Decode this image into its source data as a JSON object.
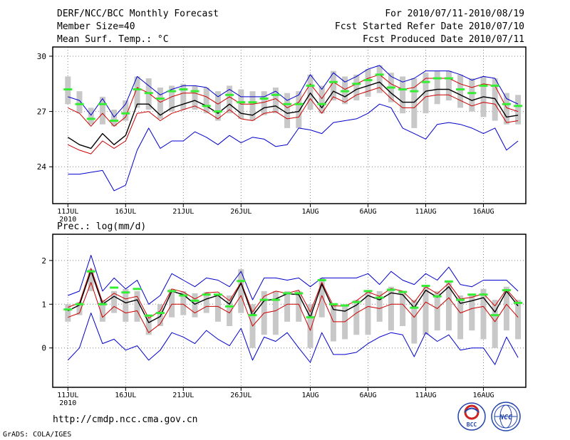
{
  "header": {
    "title": "DERF/NCC/BCC Monthly Forecast",
    "member_size": "Member Size=40",
    "variable": "Mean Surf. Temp.: °C",
    "period": "For 2010/07/11-2010/08/19",
    "fcst_started": "Fcst Started Refer Date 2010/07/10",
    "fcst_produced": "Fcst Produced Date 2010/07/11"
  },
  "footer": {
    "url": "http://cmdp.ncc.cma.gov.cn",
    "grads": "GrADS: COLA/IGES",
    "logo_left_text": "BCC",
    "logo_right_text": "NCC"
  },
  "colors": {
    "max_min": "#0000cc",
    "pct": "#cc0000",
    "mean": "#000000",
    "box": "#c8c8c8",
    "obs": "#33ee33",
    "grid": "#888888"
  },
  "chart_data": [
    {
      "type": "line",
      "title": "Mean Surf. Temp.: °C",
      "ylabel": "",
      "ylim": [
        22,
        30.5
      ],
      "yticks": [
        24,
        27,
        30
      ],
      "year_label": "2010",
      "xticks": [
        {
          "day": 1,
          "label": "11JUL"
        },
        {
          "day": 6,
          "label": "16JUL"
        },
        {
          "day": 11,
          "label": "21JUL"
        },
        {
          "day": 16,
          "label": "26JUL"
        },
        {
          "day": 22,
          "label": "1AUG"
        },
        {
          "day": 27,
          "label": "6AUG"
        },
        {
          "day": 32,
          "label": "11AUG"
        },
        {
          "day": 37,
          "label": "16AUG"
        }
      ],
      "series": [
        {
          "name": "max",
          "values": [
            27.8,
            27.6,
            26.8,
            27.7,
            26.7,
            27.4,
            28.9,
            28.4,
            27.9,
            28.2,
            28.4,
            28.4,
            28.3,
            27.8,
            28.2,
            27.8,
            27.8,
            27.8,
            28.1,
            27.6,
            27.9,
            29.0,
            28.2,
            29.1,
            28.6,
            28.9,
            29.3,
            29.5,
            28.9,
            28.6,
            28.8,
            29.2,
            29.2,
            29.2,
            29.0,
            28.7,
            28.9,
            28.8,
            27.7,
            27.4
          ]
        },
        {
          "name": "p75",
          "values": [
            27.2,
            26.9,
            26.2,
            26.9,
            26.2,
            26.7,
            28.3,
            28.0,
            27.5,
            27.8,
            28.0,
            28.0,
            27.8,
            27.4,
            27.8,
            27.4,
            27.4,
            27.5,
            27.7,
            27.2,
            27.5,
            28.5,
            27.7,
            28.6,
            28.2,
            28.5,
            28.8,
            29.0,
            28.5,
            28.2,
            28.3,
            28.8,
            28.8,
            28.8,
            28.5,
            28.3,
            28.5,
            28.4,
            27.2,
            27.0
          ]
        },
        {
          "name": "mean",
          "values": [
            25.6,
            25.2,
            25.0,
            25.8,
            25.2,
            25.7,
            27.4,
            27.4,
            26.8,
            27.2,
            27.4,
            27.6,
            27.3,
            26.9,
            27.4,
            26.9,
            26.8,
            27.2,
            27.3,
            26.9,
            27.0,
            28.0,
            27.2,
            28.1,
            27.8,
            28.2,
            28.4,
            28.6,
            28.0,
            27.5,
            27.5,
            28.1,
            28.2,
            28.2,
            27.9,
            27.6,
            27.8,
            27.7,
            26.7,
            26.8
          ]
        },
        {
          "name": "p25",
          "values": [
            25.2,
            24.9,
            24.7,
            25.4,
            25.0,
            25.4,
            26.9,
            27.0,
            26.5,
            26.9,
            27.1,
            27.3,
            27.0,
            26.6,
            27.1,
            26.6,
            26.5,
            26.9,
            27.0,
            26.6,
            26.7,
            27.7,
            26.9,
            27.8,
            27.5,
            27.9,
            28.1,
            28.3,
            27.7,
            27.2,
            27.2,
            27.8,
            27.9,
            27.9,
            27.6,
            27.3,
            27.5,
            27.4,
            26.4,
            26.5
          ]
        },
        {
          "name": "min",
          "values": [
            23.6,
            23.6,
            23.7,
            23.8,
            22.7,
            23.0,
            24.9,
            26.1,
            25.0,
            25.4,
            25.4,
            25.9,
            25.6,
            25.2,
            25.7,
            25.3,
            25.6,
            25.5,
            25.1,
            25.2,
            26.1,
            26.0,
            25.8,
            26.4,
            26.5,
            26.6,
            26.9,
            27.4,
            27.2,
            26.1,
            25.8,
            25.5,
            26.3,
            26.4,
            26.3,
            26.1,
            25.8,
            26.1,
            24.9,
            25.4
          ]
        },
        {
          "name": "box_upper",
          "values": [
            28.9,
            28.1,
            27.2,
            27.8,
            27.1,
            27.6,
            28.9,
            28.8,
            28.3,
            28.4,
            28.5,
            28.4,
            28.3,
            28.1,
            28.4,
            28.2,
            28.1,
            28.1,
            28.3,
            28.0,
            28.1,
            29.0,
            28.4,
            29.2,
            28.9,
            29.0,
            29.3,
            29.5,
            29.1,
            28.9,
            28.8,
            29.1,
            29.2,
            29.2,
            29.0,
            28.8,
            28.9,
            28.8,
            28.0,
            27.9
          ]
        },
        {
          "name": "box_lower",
          "values": [
            27.4,
            26.9,
            26.3,
            26.3,
            26.2,
            26.5,
            27.2,
            27.1,
            26.6,
            27.0,
            27.1,
            27.1,
            26.9,
            26.5,
            26.9,
            26.6,
            26.5,
            26.8,
            26.9,
            26.1,
            26.1,
            27.1,
            26.9,
            27.6,
            27.4,
            27.6,
            27.8,
            28.0,
            27.5,
            26.9,
            26.1,
            26.9,
            27.4,
            27.6,
            27.2,
            27.0,
            26.7,
            26.5,
            26.3,
            26.3
          ]
        },
        {
          "name": "observed",
          "values": [
            28.2,
            27.4,
            26.6,
            27.4,
            26.5,
            26.9,
            28.2,
            28.0,
            27.7,
            28.1,
            28.2,
            28.1,
            27.3,
            27.0,
            27.9,
            27.5,
            27.5,
            27.7,
            27.9,
            27.4,
            27.4,
            28.4,
            27.4,
            28.6,
            28.1,
            28.5,
            28.7,
            29.0,
            28.3,
            28.2,
            28.1,
            28.6,
            28.8,
            28.8,
            28.2,
            28.0,
            28.4,
            28.4,
            27.4,
            27.3
          ]
        }
      ]
    },
    {
      "type": "line",
      "title": "Prec.: log(mm/d)",
      "ylabel": "",
      "ylim": [
        -0.9,
        2.6
      ],
      "yticks": [
        0,
        1,
        2
      ],
      "year_label": "2010",
      "xticks": [
        {
          "day": 1,
          "label": "11JUL"
        },
        {
          "day": 6,
          "label": "16JUL"
        },
        {
          "day": 11,
          "label": "21JUL"
        },
        {
          "day": 16,
          "label": "26JUL"
        },
        {
          "day": 22,
          "label": "1AUG"
        },
        {
          "day": 27,
          "label": "6AUG"
        },
        {
          "day": 32,
          "label": "11AUG"
        },
        {
          "day": 37,
          "label": "16AUG"
        }
      ],
      "series": [
        {
          "name": "max",
          "values": [
            1.2,
            1.3,
            2.12,
            1.3,
            1.6,
            1.35,
            1.55,
            1.0,
            1.2,
            1.7,
            1.55,
            1.4,
            1.6,
            1.55,
            1.4,
            1.75,
            1.1,
            1.6,
            1.6,
            1.55,
            1.6,
            1.4,
            1.6,
            1.6,
            1.6,
            1.6,
            1.7,
            1.45,
            1.75,
            1.55,
            1.45,
            1.7,
            1.55,
            1.85,
            1.45,
            1.4,
            1.55,
            1.55,
            1.55,
            1.3
          ]
        },
        {
          "name": "p75",
          "values": [
            0.93,
            1.03,
            1.82,
            1.05,
            1.25,
            1.12,
            1.18,
            0.68,
            0.85,
            1.35,
            1.28,
            1.12,
            1.26,
            1.28,
            1.08,
            1.5,
            0.82,
            1.18,
            1.3,
            1.25,
            1.32,
            0.82,
            1.5,
            0.96,
            0.96,
            1.08,
            1.28,
            1.18,
            1.36,
            1.3,
            1.04,
            1.4,
            1.24,
            1.48,
            1.12,
            1.16,
            1.24,
            0.96,
            1.34,
            1.04
          ]
        },
        {
          "name": "mean",
          "values": [
            0.85,
            0.98,
            1.76,
            1.0,
            1.18,
            1.03,
            1.1,
            0.58,
            0.72,
            1.3,
            1.22,
            1.0,
            1.12,
            1.2,
            1.0,
            1.48,
            0.74,
            1.08,
            1.12,
            1.24,
            1.22,
            0.7,
            1.46,
            0.88,
            0.84,
            0.98,
            1.2,
            1.1,
            1.26,
            1.22,
            0.92,
            1.32,
            1.16,
            1.4,
            1.02,
            1.08,
            1.15,
            0.82,
            1.3,
            0.96
          ]
        },
        {
          "name": "p25",
          "values": [
            0.7,
            0.8,
            1.5,
            0.7,
            0.95,
            0.8,
            0.85,
            0.35,
            0.55,
            1.0,
            1.0,
            0.8,
            0.95,
            0.95,
            0.8,
            1.2,
            0.5,
            0.8,
            0.85,
            1.0,
            1.0,
            0.4,
            1.2,
            0.6,
            0.6,
            0.8,
            0.95,
            0.9,
            1.0,
            1.0,
            0.7,
            1.05,
            0.9,
            1.15,
            0.8,
            0.9,
            0.95,
            0.6,
            1.0,
            0.7
          ]
        },
        {
          "name": "min",
          "values": [
            -0.28,
            0.0,
            0.8,
            0.1,
            0.2,
            -0.05,
            0.05,
            -0.28,
            -0.05,
            0.35,
            0.25,
            0.1,
            0.4,
            0.2,
            0.05,
            0.45,
            -0.28,
            0.25,
            0.15,
            0.35,
            0.0,
            -0.33,
            0.35,
            -0.15,
            -0.15,
            -0.1,
            0.1,
            0.25,
            0.35,
            0.3,
            -0.2,
            0.35,
            0.15,
            0.3,
            -0.05,
            0.0,
            0.0,
            -0.38,
            0.25,
            -0.22
          ]
        },
        {
          "name": "box_upper",
          "values": [
            1.0,
            1.05,
            1.8,
            1.1,
            1.3,
            1.35,
            1.3,
            0.7,
            1.0,
            1.35,
            1.3,
            1.25,
            1.28,
            1.2,
            1.2,
            1.8,
            1.0,
            1.3,
            1.3,
            1.3,
            1.3,
            1.0,
            1.6,
            1.0,
            1.0,
            1.1,
            1.3,
            1.3,
            1.4,
            1.3,
            1.1,
            1.4,
            1.3,
            1.5,
            1.2,
            1.2,
            1.35,
            1.1,
            1.4,
            1.1
          ]
        },
        {
          "name": "box_lower",
          "values": [
            0.6,
            0.75,
            1.3,
            0.6,
            0.8,
            0.6,
            0.6,
            0.3,
            0.5,
            0.7,
            0.75,
            0.7,
            0.8,
            0.6,
            0.5,
            0.8,
            0.0,
            0.3,
            0.3,
            0.6,
            0.6,
            0.0,
            0.7,
            0.15,
            0.2,
            0.3,
            0.3,
            0.6,
            0.4,
            0.5,
            0.1,
            0.3,
            0.4,
            0.4,
            0.2,
            0.4,
            0.2,
            0.0,
            0.4,
            0.2
          ]
        },
        {
          "name": "observed",
          "values": [
            0.88,
            1.0,
            1.75,
            1.0,
            1.38,
            1.27,
            1.35,
            0.74,
            0.8,
            1.3,
            1.2,
            1.08,
            1.22,
            1.22,
            0.95,
            1.53,
            0.75,
            1.1,
            1.1,
            1.25,
            1.25,
            0.7,
            1.55,
            1.0,
            0.97,
            1.05,
            1.3,
            1.15,
            1.33,
            1.28,
            0.92,
            1.42,
            1.18,
            1.52,
            1.1,
            1.22,
            1.22,
            0.75,
            1.32,
            1.03
          ]
        }
      ]
    }
  ]
}
